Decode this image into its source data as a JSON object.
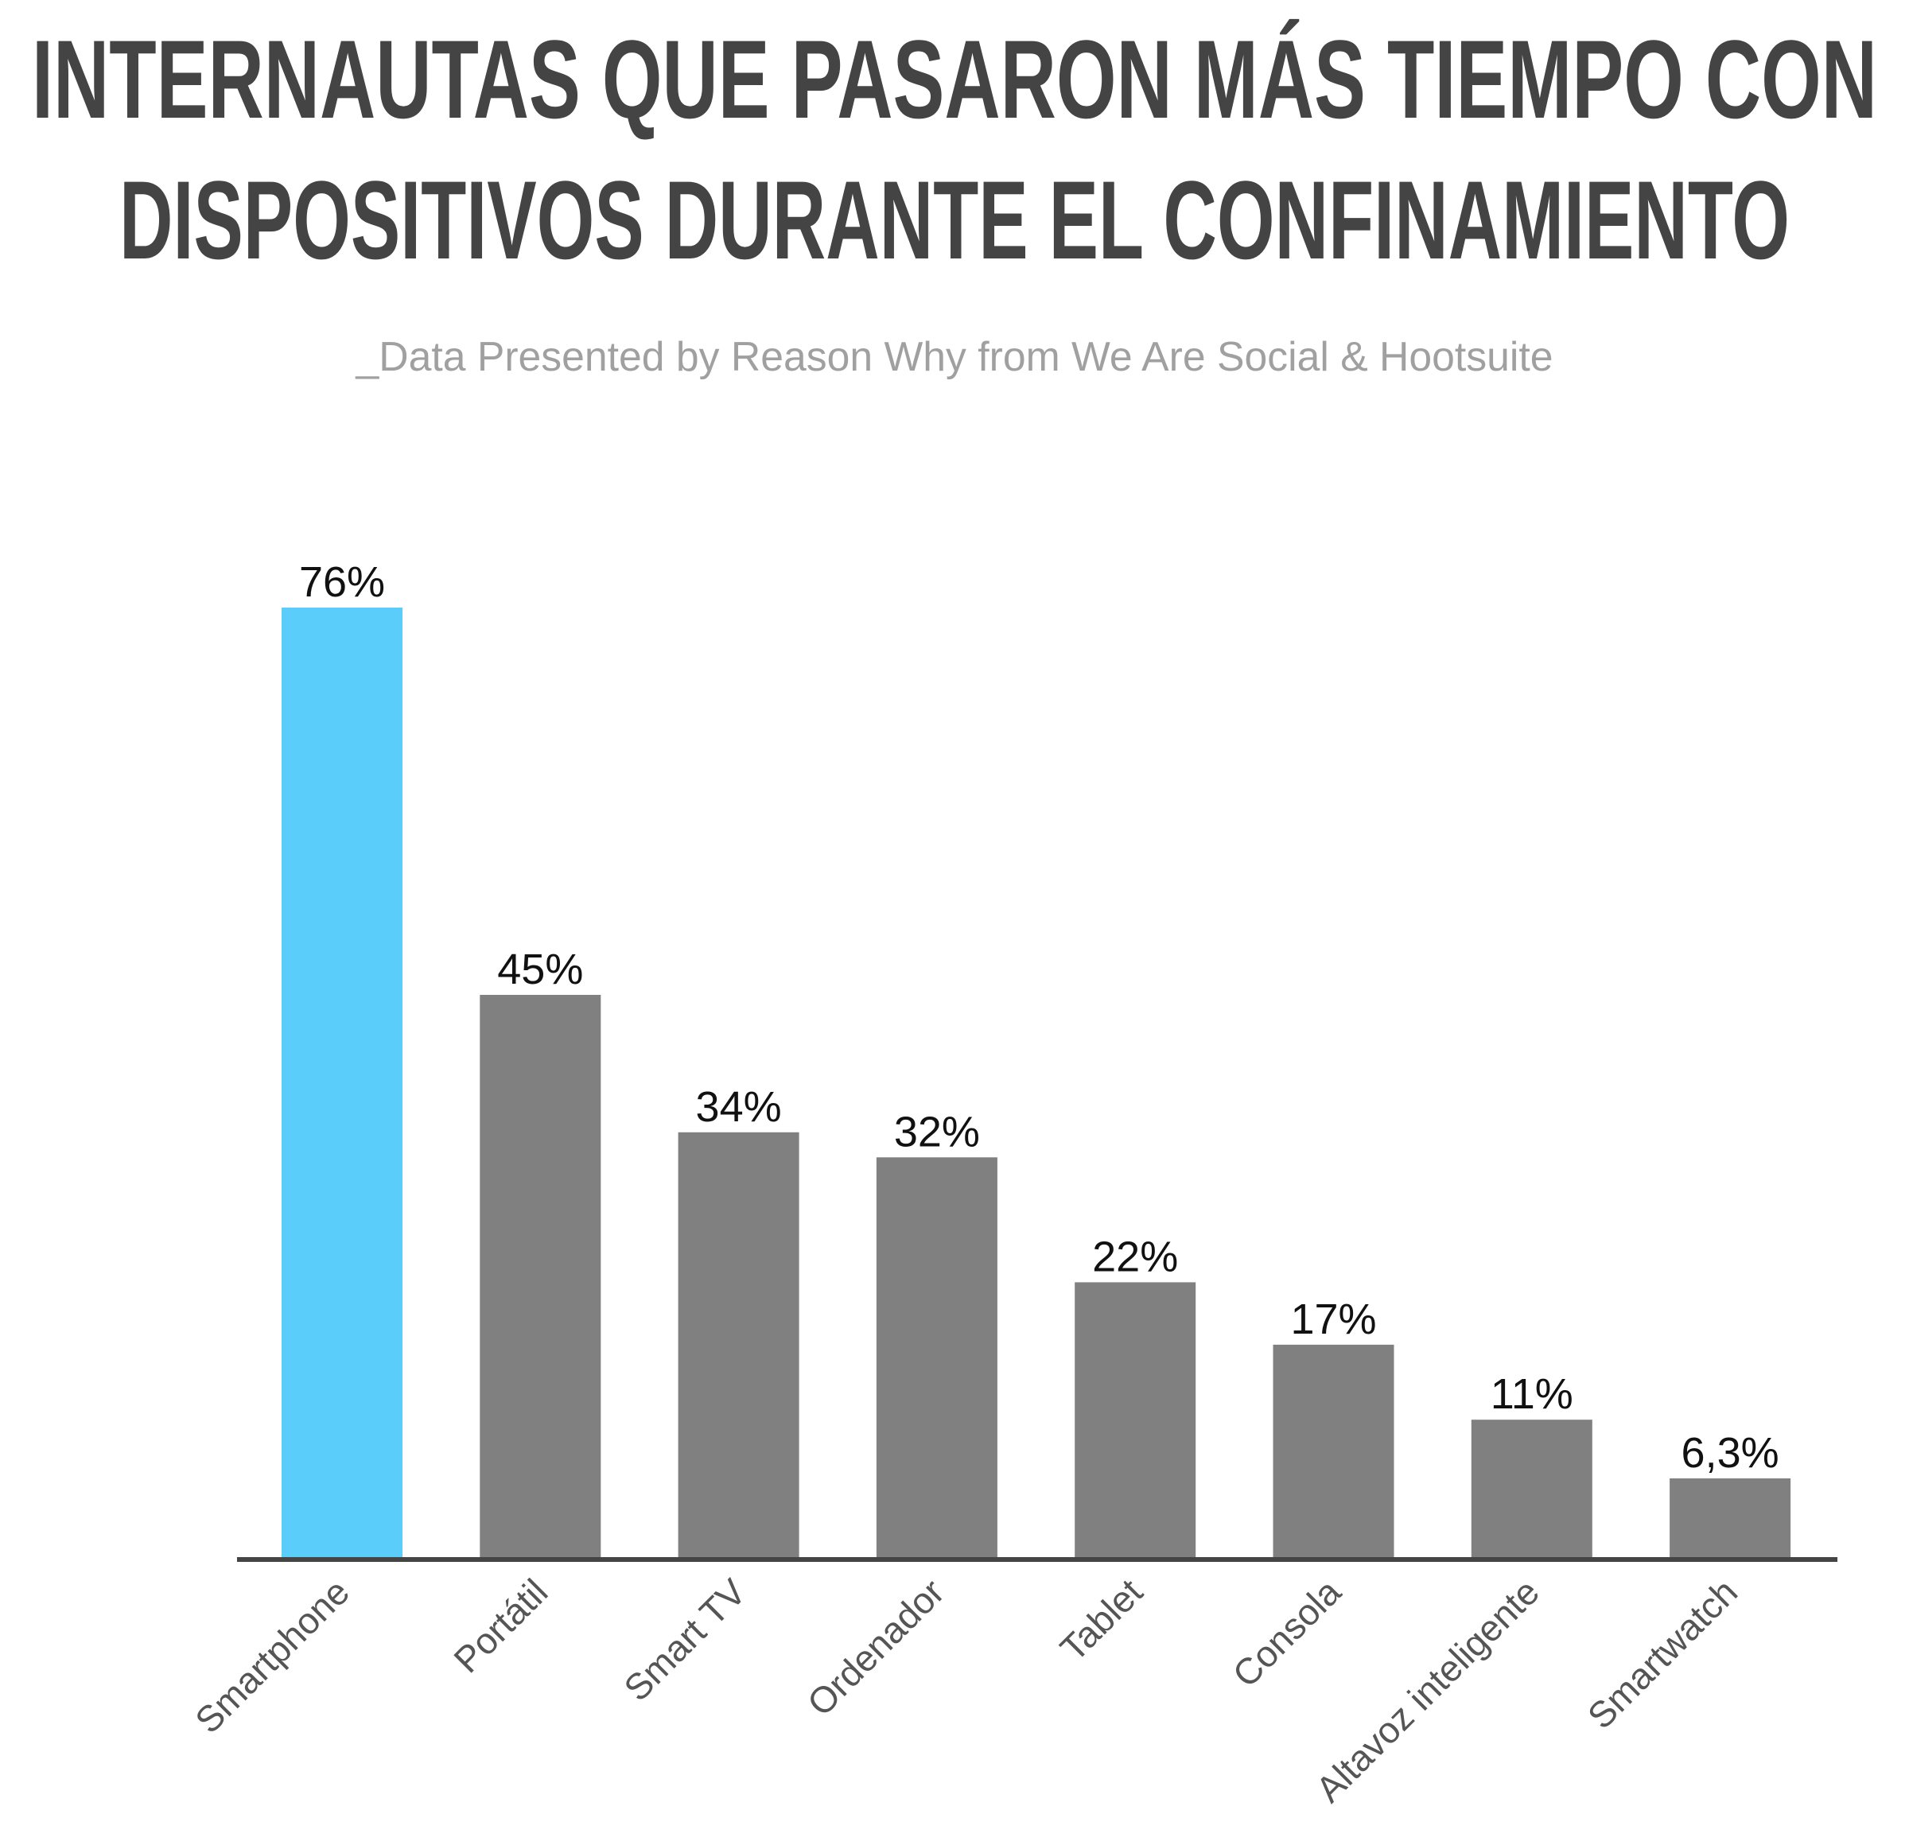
{
  "chart_data": {
    "type": "bar",
    "title_lines": [
      "INTERNAUTAS QUE PASARON MÁS TIEMPO CON",
      "DISPOSITIVOS DURANTE EL CONFINAMIENTO"
    ],
    "subtitle": "_Data Presented by Reason Why from We Are Social & Hootsuite",
    "categories": [
      "Smartphone",
      "Portátil",
      "Smart TV",
      "Ordenador",
      "Tablet",
      "Consola",
      "Altavoz inteligente",
      "Smartwatch"
    ],
    "values": [
      76,
      45,
      34,
      32,
      22,
      17,
      11,
      6.3
    ],
    "value_labels": [
      "76%",
      "45%",
      "34%",
      "32%",
      "22%",
      "17%",
      "11%",
      "6,3%"
    ],
    "ylim": [
      0,
      76
    ],
    "grid": false,
    "legend": "none",
    "colors": {
      "highlight": "#5bcdfb",
      "default": "#808080",
      "axis": "#444444"
    },
    "highlight_index": 0
  }
}
